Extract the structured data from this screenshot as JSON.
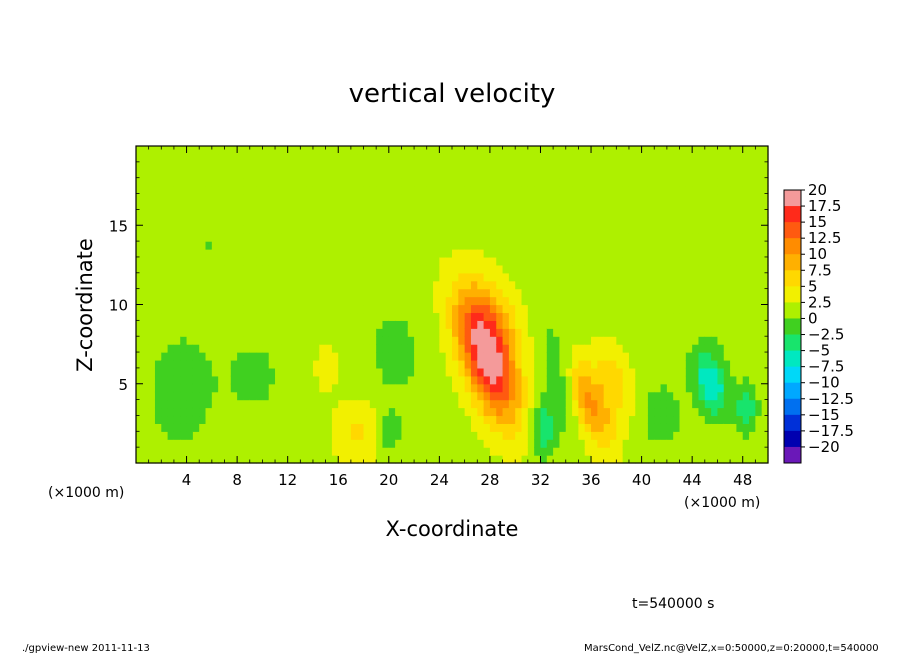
{
  "chart_data": {
    "type": "heatmap",
    "title": "vertical velocity",
    "xlabel": "X-coordinate",
    "ylabel": "Z-coordinate",
    "x_unit": "(×1000 m)",
    "y_unit": "(×1000 m)",
    "xlim": [
      0,
      50
    ],
    "ylim": [
      0,
      20
    ],
    "x_ticks": [
      "4",
      "8",
      "12",
      "16",
      "20",
      "24",
      "28",
      "32",
      "36",
      "40",
      "44",
      "48"
    ],
    "y_ticks": [
      "5",
      "10",
      "15"
    ],
    "x_tick_values": [
      4,
      8,
      12,
      16,
      20,
      24,
      28,
      32,
      36,
      40,
      44,
      48
    ],
    "y_tick_values": [
      5,
      10,
      15
    ],
    "colorbar": {
      "levels": [
        20,
        17.5,
        15,
        12.5,
        10,
        7.5,
        5,
        2.5,
        0,
        -2.5,
        -5,
        -7.5,
        -10,
        -12.5,
        -15,
        -17.5,
        -20
      ],
      "labels": [
        "20",
        "17.5",
        "15",
        "12.5",
        "10",
        "7.5",
        "5",
        "2.5",
        "0",
        "−2.5",
        "−5",
        "−7.5",
        "−10",
        "−12.5",
        "−15",
        "−17.5",
        "−20"
      ],
      "colors": [
        "#f49a9a",
        "#ff2a1a",
        "#ff5a10",
        "#ff8c00",
        "#ffb000",
        "#ffd800",
        "#f2f000",
        "#aef000",
        "#40d020",
        "#18e46c",
        "#00e8c0",
        "#00d8f8",
        "#00a8ff",
        "#0070f0",
        "#0030d8",
        "#0000b0",
        "#6a18b8"
      ]
    },
    "background_value": 1.5,
    "features": [
      {
        "x": 27.8,
        "z": 6.5,
        "peak": 16.5,
        "sx": 1.4,
        "sz": 2.8,
        "tilt": 0.35
      },
      {
        "x": 28.2,
        "z": 8.8,
        "peak": 5.5,
        "sx": 1.6,
        "sz": 2.2,
        "tilt": 0.2
      },
      {
        "x": 36.0,
        "z": 3.6,
        "peak": 9.0,
        "sx": 1.0,
        "sz": 2.0,
        "tilt": 0.4
      },
      {
        "x": 37.8,
        "z": 5.2,
        "peak": 4.5,
        "sx": 1.1,
        "sz": 1.6,
        "tilt": 0.3
      },
      {
        "x": 45.5,
        "z": 5.0,
        "peak": -9.0,
        "sx": 0.9,
        "sz": 1.4,
        "tilt": 0.2
      },
      {
        "x": 48.3,
        "z": 3.4,
        "peak": -6.0,
        "sx": 0.6,
        "sz": 1.1,
        "tilt": 0.0
      },
      {
        "x": 32.2,
        "z": 2.2,
        "peak": -6.0,
        "sx": 0.7,
        "sz": 1.3,
        "tilt": 0.0
      },
      {
        "x": 33.5,
        "z": 5.5,
        "peak": -3.5,
        "sx": 0.9,
        "sz": 2.5,
        "tilt": 0.2
      },
      {
        "x": 17.5,
        "z": 2.0,
        "peak": 4.0,
        "sx": 1.3,
        "sz": 1.4,
        "tilt": 0.0
      },
      {
        "x": 20.0,
        "z": 2.0,
        "peak": -4.0,
        "sx": 0.6,
        "sz": 0.9,
        "tilt": 0.0
      },
      {
        "x": 15.0,
        "z": 6.0,
        "peak": 3.0,
        "sx": 0.6,
        "sz": 1.0,
        "tilt": 0.0
      },
      {
        "x": 20.5,
        "z": 7.0,
        "peak": -2.5,
        "sx": 1.5,
        "sz": 2.2,
        "tilt": 0.0
      },
      {
        "x": 3.5,
        "z": 4.5,
        "peak": -2.5,
        "sx": 2.2,
        "sz": 3.0,
        "tilt": 0.0
      },
      {
        "x": 9.5,
        "z": 5.5,
        "peak": -2.0,
        "sx": 1.8,
        "sz": 2.0,
        "tilt": 0.0
      },
      {
        "x": 41.5,
        "z": 3.0,
        "peak": -3.0,
        "sx": 1.2,
        "sz": 1.5,
        "tilt": 0.0
      },
      {
        "x": 46.0,
        "z": 13.0,
        "peak": -1.5,
        "sx": 2.5,
        "sz": 4.0,
        "tilt": 0.0
      },
      {
        "x": 6.0,
        "z": 14.0,
        "peak": -1.5,
        "sx": 3.0,
        "sz": 3.0,
        "tilt": 0.0
      }
    ]
  },
  "timestamp_label": "t=540000 s",
  "footer_left": "./gpview-new  2011-11-13",
  "footer_right": "MarsCond_VelZ.nc@VelZ,x=0:50000,z=0:20000,t=540000"
}
